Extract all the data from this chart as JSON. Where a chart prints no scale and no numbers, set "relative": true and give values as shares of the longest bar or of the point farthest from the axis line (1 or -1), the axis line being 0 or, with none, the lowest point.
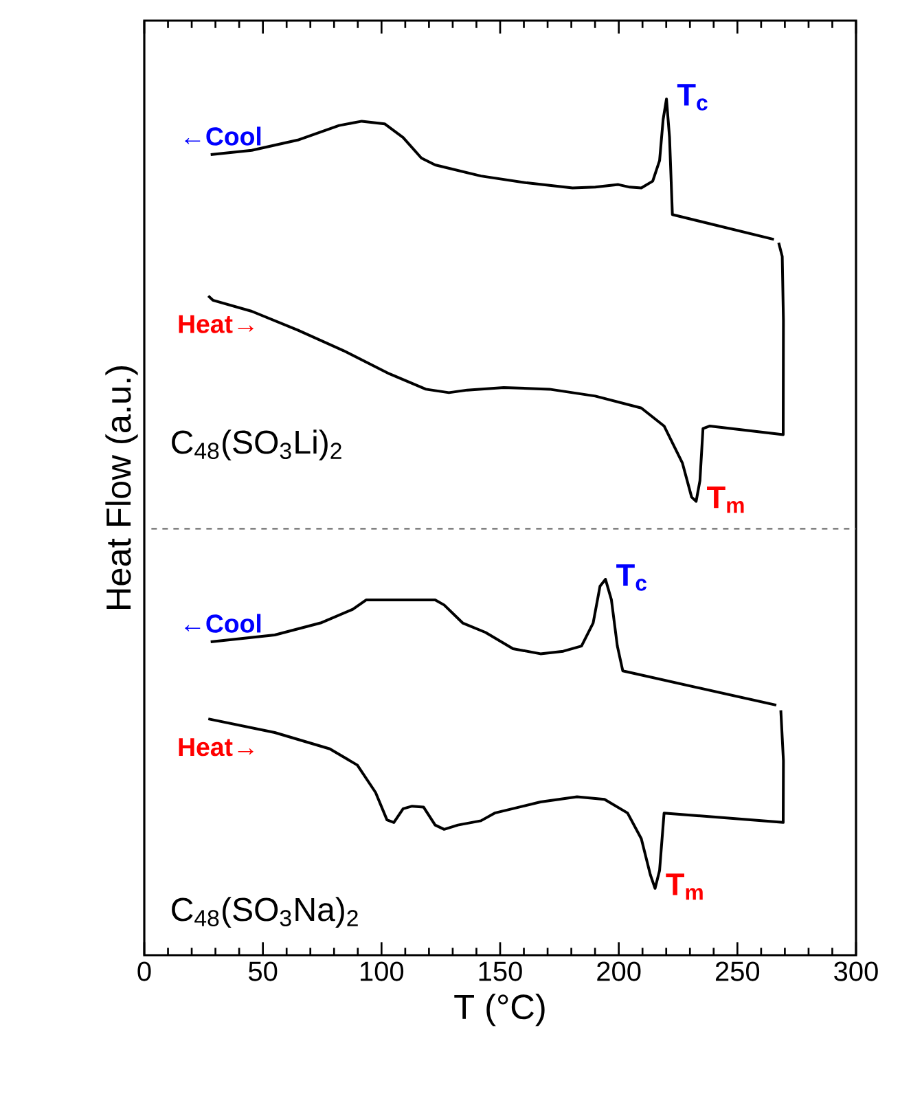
{
  "chart_data": {
    "type": "line",
    "relative": true,
    "xlabel": "T (°C)",
    "ylabel": "Heat Flow (a.u.)",
    "xlim": [
      0,
      300
    ],
    "xticks": [
      0,
      50,
      100,
      150,
      200,
      250,
      300
    ],
    "grid": false,
    "marker": "none",
    "line_style": "solid",
    "series": [
      {
        "name": "←Cool",
        "color": "#000000",
        "x": [
          265.4,
          222.6,
          221.4,
          220.1,
          218.7,
          217.2,
          214.3,
          209.5,
          204.6,
          199.8,
          190.1,
          180.5,
          161.2,
          141.9,
          122.6,
          116.8,
          109.1,
          101.3,
          91.7,
          82.1,
          64.7,
          45.3,
          28.0
        ],
        "values": [
          0.836,
          0.865,
          0.955,
          1.0,
          0.976,
          0.928,
          0.904,
          0.896,
          0.897,
          0.9,
          0.897,
          0.896,
          0.902,
          0.91,
          0.923,
          0.931,
          0.955,
          0.971,
          0.974,
          0.969,
          0.952,
          0.94,
          0.935
        ]
      },
      {
        "name": "Heat→",
        "color": "#000000",
        "x": [
          27.0,
          28.9,
          45.3,
          64.7,
          84.0,
          103.3,
          118.7,
          128.4,
          136.1,
          151.5,
          170.8,
          190.1,
          209.5,
          219.1,
          226.8,
          230.7,
          232.6,
          234.2,
          235.5,
          238.4,
          269.3,
          269.4,
          268.9,
          267.4
        ],
        "values": [
          0.77,
          0.765,
          0.752,
          0.73,
          0.706,
          0.679,
          0.661,
          0.657,
          0.66,
          0.663,
          0.661,
          0.653,
          0.639,
          0.618,
          0.575,
          0.535,
          0.53,
          0.554,
          0.615,
          0.618,
          0.608,
          0.741,
          0.816,
          0.832
        ]
      },
      {
        "name": "←Cool",
        "color": "#000000",
        "x": [
          266.4,
          201.7,
          199.4,
          196.9,
          194.4,
          192.1,
          189.2,
          184.3,
          176.6,
          167.0,
          155.4,
          143.8,
          134.2,
          126.4,
          122.6,
          105.2,
          93.6,
          87.9,
          74.3,
          55.0,
          28.0
        ],
        "values": [
          0.292,
          0.332,
          0.361,
          0.415,
          0.439,
          0.431,
          0.388,
          0.361,
          0.355,
          0.352,
          0.358,
          0.377,
          0.388,
          0.409,
          0.415,
          0.415,
          0.415,
          0.404,
          0.388,
          0.374,
          0.366
        ]
      },
      {
        "name": "Heat→",
        "color": "#000000",
        "x": [
          27.0,
          55.0,
          78.2,
          89.8,
          97.5,
          102.3,
          105.2,
          109.1,
          112.9,
          117.7,
          122.6,
          126.4,
          132.2,
          141.9,
          147.7,
          167.0,
          182.4,
          194.0,
          203.7,
          209.5,
          213.3,
          215.3,
          217.2,
          219.1,
          269.3,
          269.4,
          268.3
        ],
        "values": [
          0.276,
          0.26,
          0.241,
          0.222,
          0.19,
          0.158,
          0.155,
          0.171,
          0.174,
          0.173,
          0.152,
          0.147,
          0.152,
          0.157,
          0.166,
          0.179,
          0.185,
          0.182,
          0.166,
          0.136,
          0.094,
          0.078,
          0.099,
          0.166,
          0.155,
          0.227,
          0.286
        ]
      }
    ],
    "ref_lines": [
      {
        "axis": "y",
        "value": 0.498,
        "color": "#555555",
        "line_style": "dashed"
      }
    ],
    "annotations": [
      {
        "text": "T$_{c}$",
        "x": 220.1,
        "y": 1.0
      },
      {
        "text": "T$_{m}$",
        "x": 232.6,
        "y": 0.53
      },
      {
        "text": "T$_{c}$",
        "x": 194.4,
        "y": 0.439
      },
      {
        "text": "T$_{m}$",
        "x": 215.3,
        "y": 0.078
      },
      "C$_{48}$(SO$_{3}$Li)$_{2}$",
      "C$_{48}$(SO$_{3}$Na)$_{2}$"
    ]
  }
}
